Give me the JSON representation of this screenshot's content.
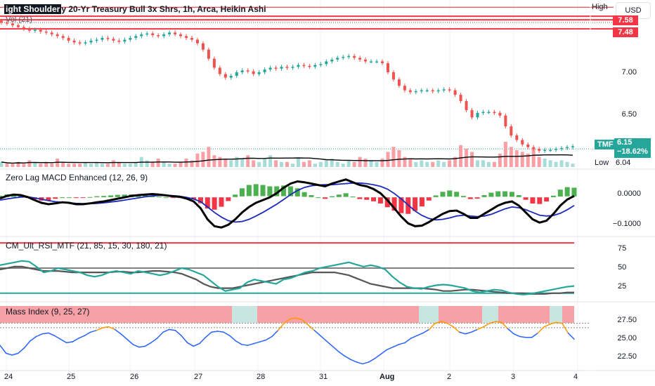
{
  "header": {
    "title_prefix": "ight Shoulder",
    "title": "y 20-Yr Treasury Bull 3x Shrs, 1h, Arca, Heikin Ashi",
    "vol_label": "Vol (21)",
    "currency": "USD"
  },
  "price_pane": {
    "high_label": "High",
    "low_label": "Low",
    "low_value": "6.04",
    "symbol_badge": "TMF",
    "last_price": "6.15",
    "last_change": "−18.62%",
    "red_level_1": "7.62",
    "red_level_2": "7.58",
    "red_level_3": "7.48",
    "colors": {
      "up": "#26a69a",
      "down": "#ef5350",
      "level": "#f23645"
    }
  },
  "chart_data": [
    {
      "type": "candlestick",
      "title": "y 20-Yr Treasury Bull 3x Shrs, 1h, Arca, Heikin Ashi",
      "yticks": [
        "7.00",
        "6.50"
      ],
      "ylim": [
        5.95,
        7.8
      ],
      "levels": [
        7.62,
        7.58,
        7.48
      ],
      "close": [
        7.55,
        7.54,
        7.52,
        7.5,
        7.48,
        7.46,
        7.47,
        7.45,
        7.44,
        7.42,
        7.4,
        7.38,
        7.35,
        7.33,
        7.32,
        7.33,
        7.35,
        7.36,
        7.38,
        7.37,
        7.35,
        7.34,
        7.36,
        7.38,
        7.4,
        7.42,
        7.43,
        7.41,
        7.4,
        7.42,
        7.44,
        7.42,
        7.4,
        7.38,
        7.36,
        7.32,
        7.25,
        7.15,
        7.05,
        6.98,
        6.94,
        6.96,
        7.0,
        7.02,
        7.01,
        6.98,
        7.0,
        7.03,
        7.05,
        7.04,
        7.06,
        7.05,
        7.06,
        7.08,
        7.07,
        7.06,
        7.08,
        7.09,
        7.12,
        7.14,
        7.16,
        7.17,
        7.18,
        7.16,
        7.14,
        7.12,
        7.12,
        7.12,
        7.1,
        7.0,
        6.92,
        6.85,
        6.8,
        6.78,
        6.79,
        6.8,
        6.8,
        6.79,
        6.8,
        6.81,
        6.8,
        6.75,
        6.68,
        6.58,
        6.5,
        6.55,
        6.56,
        6.56,
        6.55,
        6.52,
        6.4,
        6.3,
        6.25,
        6.2,
        6.17,
        6.15,
        6.13,
        6.14,
        6.14,
        6.15,
        6.16,
        6.17,
        6.18
      ],
      "volume": [
        3,
        2,
        2,
        3,
        2,
        4,
        3,
        2,
        3,
        2,
        5,
        3,
        2,
        2,
        2,
        3,
        2,
        3,
        2,
        2,
        4,
        3,
        2,
        2,
        3,
        6,
        4,
        3,
        5,
        3,
        2,
        2,
        3,
        5,
        4,
        8,
        9,
        12,
        7,
        6,
        5,
        4,
        6,
        5,
        7,
        4,
        3,
        5,
        7,
        4,
        3,
        3,
        2,
        5,
        3,
        4,
        2,
        3,
        4,
        5,
        3,
        2,
        4,
        3,
        6,
        5,
        4,
        3,
        5,
        9,
        12,
        10,
        6,
        5,
        3,
        4,
        3,
        3,
        4,
        3,
        4,
        6,
        13,
        11,
        9,
        4,
        4,
        3,
        3,
        8,
        15,
        12,
        10,
        9,
        8,
        11,
        6,
        5,
        4,
        3,
        4,
        3,
        2
      ]
    },
    {
      "type": "macd",
      "title": "Zero Lag MACD Enhanced (12, 26, 9)",
      "yticks": [
        "0.0000",
        "−0.1000"
      ],
      "ylim": [
        -0.135,
        0.095
      ],
      "macd": [
        -0.004,
        0.005,
        0.01,
        0.008,
        0.001,
        -0.01,
        -0.02,
        -0.025,
        -0.022,
        -0.018,
        -0.02,
        -0.025,
        -0.025,
        -0.022,
        -0.018,
        -0.015,
        -0.01,
        -0.005,
        0.0,
        0.005,
        0.008,
        0.01,
        0.012,
        0.01,
        0.007,
        0.004,
        0.002,
        -0.005,
        -0.015,
        -0.04,
        -0.08,
        -0.105,
        -0.11,
        -0.1,
        -0.08,
        -0.055,
        -0.035,
        -0.02,
        -0.01,
        0.0,
        0.015,
        0.035,
        0.05,
        0.058,
        0.055,
        0.05,
        0.045,
        0.04,
        0.05,
        0.058,
        0.065,
        0.055,
        0.045,
        0.04,
        0.03,
        0.015,
        -0.01,
        -0.04,
        -0.07,
        -0.095,
        -0.105,
        -0.103,
        -0.09,
        -0.075,
        -0.06,
        -0.05,
        -0.048,
        -0.06,
        -0.075,
        -0.075,
        -0.06,
        -0.045,
        -0.03,
        -0.02,
        -0.015,
        -0.03,
        -0.055,
        -0.08,
        -0.092,
        -0.085,
        -0.06,
        -0.03,
        -0.008,
        0.005
      ],
      "signal": [
        -0.01,
        -0.006,
        -0.002,
        0.001,
        0.002,
        -0.002,
        -0.007,
        -0.012,
        -0.016,
        -0.018,
        -0.02,
        -0.022,
        -0.023,
        -0.023,
        -0.022,
        -0.02,
        -0.017,
        -0.014,
        -0.01,
        -0.006,
        -0.002,
        0.002,
        0.005,
        0.007,
        0.007,
        0.006,
        0.004,
        0.0,
        -0.006,
        -0.016,
        -0.035,
        -0.055,
        -0.072,
        -0.085,
        -0.09,
        -0.088,
        -0.08,
        -0.068,
        -0.055,
        -0.04,
        -0.025,
        -0.008,
        0.01,
        0.025,
        0.036,
        0.042,
        0.045,
        0.046,
        0.046,
        0.048,
        0.05,
        0.052,
        0.052,
        0.05,
        0.046,
        0.04,
        0.03,
        0.014,
        -0.006,
        -0.028,
        -0.05,
        -0.066,
        -0.077,
        -0.082,
        -0.08,
        -0.075,
        -0.068,
        -0.065,
        -0.068,
        -0.07,
        -0.068,
        -0.062,
        -0.052,
        -0.042,
        -0.035,
        -0.038,
        -0.045,
        -0.055,
        -0.065,
        -0.068,
        -0.066,
        -0.058,
        -0.045,
        -0.03
      ],
      "colors": {
        "macd": "#000000",
        "signal": "#1c2aba",
        "hist_up": "#4caf50",
        "hist_down": "#f23645"
      }
    },
    {
      "type": "line",
      "title": "CM_Ult_RSI_MTF (21, 85, 15, 30, 180, 21)",
      "yticks": [
        "75",
        "50",
        "25"
      ],
      "ylim": [
        5,
        92
      ],
      "hlines": [
        85,
        50,
        15
      ],
      "rsi": [
        54,
        56,
        58,
        60,
        59,
        52,
        44,
        46,
        50,
        48,
        46,
        44,
        40,
        38,
        40,
        44,
        46,
        44,
        42,
        46,
        44,
        42,
        40,
        42,
        46,
        50,
        48,
        44,
        40,
        32,
        24,
        18,
        20,
        22,
        30,
        34,
        32,
        30,
        28,
        34,
        36,
        40,
        44,
        46,
        50,
        52,
        54,
        56,
        58,
        55,
        52,
        54,
        52,
        48,
        38,
        30,
        24,
        22,
        21,
        24,
        26,
        27,
        26,
        24,
        22,
        18,
        16,
        18,
        20,
        19,
        16,
        14,
        13,
        14,
        16,
        18,
        20,
        22,
        24,
        25
      ],
      "rsi_mtf": [
        48,
        50,
        52,
        52,
        50,
        48,
        46,
        46,
        46,
        45,
        44,
        44,
        44,
        44,
        44,
        44,
        45,
        45,
        44,
        44,
        45,
        46,
        46,
        45,
        44,
        42,
        38,
        34,
        28,
        24,
        22,
        22,
        22,
        24,
        26,
        28,
        30,
        32,
        34,
        36,
        38,
        40,
        42,
        44,
        44,
        44,
        44,
        42,
        40,
        36,
        32,
        28,
        26,
        24,
        22,
        22,
        22,
        22,
        22,
        21,
        20,
        18,
        18,
        19,
        20,
        20,
        19,
        18,
        17,
        16,
        15,
        15,
        15,
        14,
        14,
        14,
        15,
        15,
        16,
        16
      ],
      "colors": {
        "rsi": "#26a69a",
        "mtf": "#555555",
        "upper": "#f23645",
        "mid": "#808080",
        "lower": "#26a69a"
      }
    },
    {
      "type": "line",
      "title": "Mass Index (9, 25, 27)",
      "yticks": [
        "27.50",
        "25.00",
        "22.50"
      ],
      "ylim": [
        21.8,
        29.2
      ],
      "hlines": [
        27.0,
        26.5
      ],
      "mass": [
        24.5,
        23.6,
        23.4,
        23.6,
        24.2,
        25.0,
        25.5,
        25.8,
        25.9,
        25.6,
        25.2,
        24.8,
        24.9,
        25.3,
        25.6,
        26.0,
        26.2,
        26.5,
        26.6,
        26.3,
        25.8,
        25.2,
        24.6,
        24.3,
        24.4,
        24.8,
        25.3,
        26.0,
        26.3,
        26.2,
        25.6,
        24.8,
        24.4,
        24.7,
        25.4,
        26.0,
        26.1,
        26.0,
        25.6,
        25.0,
        24.6,
        24.5,
        24.7,
        24.9,
        25.1,
        25.5,
        26.2,
        27.0,
        27.5,
        27.6,
        27.4,
        26.8,
        26.2,
        25.6,
        25.0,
        24.4,
        23.8,
        23.3,
        22.9,
        22.6,
        22.4,
        22.6,
        23.0,
        23.5,
        24.0,
        24.3,
        24.6,
        24.8,
        25.3,
        25.6,
        25.9,
        26.3,
        27.0,
        27.2,
        27.0,
        26.6,
        26.0,
        25.8,
        26.0,
        26.3,
        26.6,
        27.0,
        27.2,
        27.1,
        26.4,
        25.8,
        25.5,
        25.4,
        25.4,
        25.9,
        26.6,
        26.9,
        27.1,
        27.0,
        25.9,
        25.2
      ],
      "shade_highlight": [
        [
          330,
          366
        ],
        [
          596,
          624
        ],
        [
          686,
          709
        ],
        [
          782,
          800
        ]
      ],
      "colors": {
        "line": "#2962ff",
        "hot": "#ff9800",
        "shade": "#f7a1a6",
        "shade_low": "#c8e6df"
      }
    }
  ],
  "panes": {
    "macd_label": "Zero Lag MACD Enhanced (12, 26, 9)",
    "rsi_label": "CM_Ult_RSI_MTF (21, 85, 15, 30, 180, 21)",
    "mass_label": "Mass Index (9, 25, 27)"
  },
  "x_axis": {
    "labels": [
      "24",
      "25",
      "26",
      "27",
      "28",
      "31",
      "Aug",
      "2",
      "3",
      "4"
    ]
  },
  "y_axis": {
    "price_ticks": [
      "7.00",
      "6.50"
    ],
    "macd_ticks": [
      "0.0000",
      "−0.1000"
    ],
    "rsi_ticks": [
      "75",
      "50",
      "25"
    ],
    "mass_ticks": [
      "27.50",
      "25.00",
      "22.50"
    ]
  }
}
